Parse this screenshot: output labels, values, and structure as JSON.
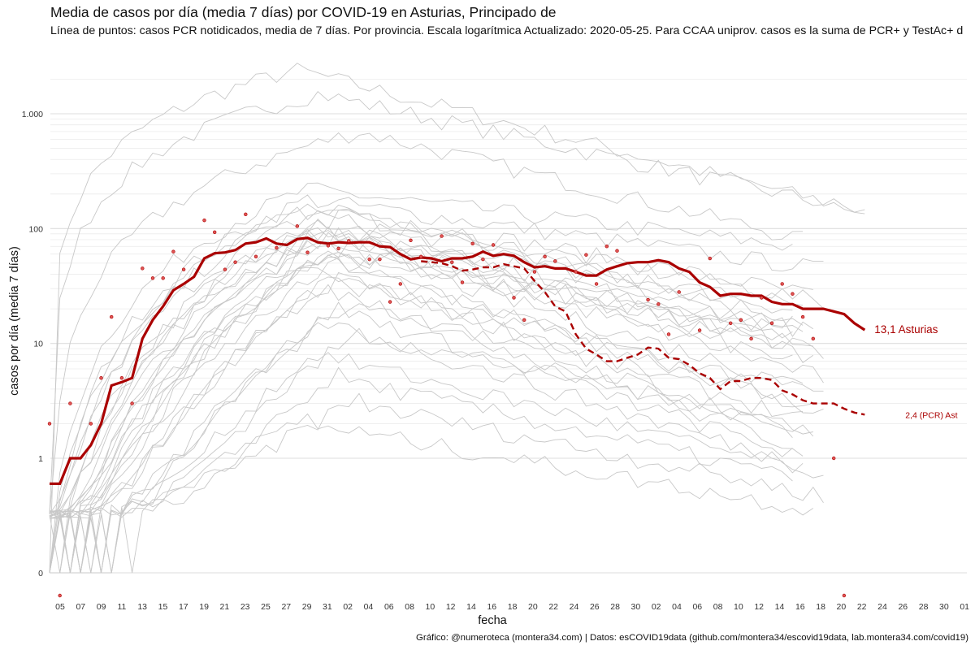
{
  "chart_data": {
    "type": "line",
    "title": "Media de casos por día (media 7 días) por COVID-19 en Asturias, Principado de",
    "subtitle": "Línea de puntos: casos PCR notidicados, media de 7 días. Por provincia. Escala logarítmica  Actualizado: 2020-05-25. Para CCAA uniprov. casos es la suma de PCR+ y TestAc+ d",
    "caption": "Gráfico: @numeroteca (montera34.com) | Datos: esCOVID19data (github.com/montera34/escovid19data, lab.montera34.com/covid19)",
    "xlabel": "fecha",
    "ylabel": "casos por día (media 7 días)",
    "y_scale": "log",
    "grid": true,
    "y_ticks": [
      {
        "value": 0,
        "label": "0"
      },
      {
        "value": 1,
        "label": "1"
      },
      {
        "value": 10,
        "label": "10"
      },
      {
        "value": 100,
        "label": "100"
      },
      {
        "value": 1000,
        "label": "1.000"
      }
    ],
    "x_tick_labels": [
      "05",
      "07",
      "09",
      "11",
      "13",
      "15",
      "17",
      "19",
      "21",
      "23",
      "25",
      "27",
      "29",
      "31",
      "02",
      "04",
      "06",
      "08",
      "10",
      "12",
      "14",
      "16",
      "18",
      "20",
      "22",
      "24",
      "26",
      "28",
      "30",
      "02",
      "04",
      "06",
      "08",
      "10",
      "12",
      "14",
      "16",
      "18",
      "20",
      "22",
      "24",
      "26",
      "28",
      "30",
      "01"
    ],
    "x_start_day": 4,
    "highlight_color": "#aa0000",
    "background_color": "#c8c8c8",
    "series": [
      {
        "name": "13,1 Asturias",
        "style": "solid",
        "values": [
          0.6,
          0.6,
          1,
          1,
          1.3,
          2,
          4.3,
          4.6,
          5,
          11,
          16,
          21,
          29,
          33,
          38,
          55,
          61,
          62,
          65,
          74,
          76,
          82,
          74,
          72,
          81,
          83,
          76,
          74,
          76,
          75,
          76,
          76,
          70,
          69,
          60,
          54,
          56,
          55,
          52,
          55,
          55,
          57,
          63,
          58,
          60,
          58,
          51,
          46,
          47,
          45,
          45,
          42,
          39,
          39,
          44,
          47,
          50,
          51,
          51,
          53,
          51,
          45,
          42,
          34,
          31,
          26,
          27,
          27,
          26,
          26,
          23,
          22,
          22,
          20,
          20,
          20,
          19,
          18,
          15,
          13.1
        ]
      },
      {
        "name": "2,4 (PCR) Ast",
        "style": "dashed",
        "values": [
          null,
          null,
          null,
          null,
          null,
          null,
          null,
          null,
          null,
          null,
          null,
          null,
          null,
          null,
          null,
          null,
          null,
          null,
          null,
          null,
          null,
          null,
          null,
          null,
          null,
          null,
          null,
          null,
          null,
          null,
          null,
          null,
          null,
          null,
          null,
          null,
          52,
          51,
          50,
          47,
          43,
          44,
          46,
          46,
          49,
          47,
          45,
          35,
          28,
          21,
          19,
          12,
          9,
          8,
          7,
          7,
          7.5,
          8,
          9.2,
          9,
          7.5,
          7.3,
          6.5,
          5.5,
          5,
          4,
          4.7,
          4.7,
          5,
          5,
          4.8,
          3.9,
          3.6,
          3.2,
          3,
          3,
          3,
          2.7,
          2.5,
          2.4
        ]
      }
    ],
    "daily_points": [
      {
        "x": "03-04",
        "y": 2
      },
      {
        "x": "03-06",
        "y": 3
      },
      {
        "x": "03-08",
        "y": 2
      },
      {
        "x": "03-09",
        "y": 5
      },
      {
        "x": "03-10",
        "y": 17
      },
      {
        "x": "03-11",
        "y": 5
      },
      {
        "x": "03-12",
        "y": 3
      },
      {
        "x": "03-13",
        "y": 45
      },
      {
        "x": "03-14",
        "y": 37
      },
      {
        "x": "03-15",
        "y": 37
      },
      {
        "x": "03-16",
        "y": 63
      },
      {
        "x": "03-17",
        "y": 44
      },
      {
        "x": "03-19",
        "y": 118
      },
      {
        "x": "03-20",
        "y": 93
      },
      {
        "x": "03-21",
        "y": 44
      },
      {
        "x": "03-22",
        "y": 51
      },
      {
        "x": "03-23",
        "y": 133
      },
      {
        "x": "03-24",
        "y": 57
      },
      {
        "x": "03-26",
        "y": 68
      },
      {
        "x": "03-28",
        "y": 105
      },
      {
        "x": "03-29",
        "y": 62
      },
      {
        "x": "03-31",
        "y": 71
      },
      {
        "x": "04-01",
        "y": 67
      },
      {
        "x": "04-02",
        "y": 78
      },
      {
        "x": "04-04",
        "y": 54
      },
      {
        "x": "04-05",
        "y": 54
      },
      {
        "x": "04-06",
        "y": 23
      },
      {
        "x": "04-07",
        "y": 33
      },
      {
        "x": "04-08",
        "y": 79
      },
      {
        "x": "04-09",
        "y": 57
      },
      {
        "x": "04-11",
        "y": 86
      },
      {
        "x": "04-12",
        "y": 51
      },
      {
        "x": "04-13",
        "y": 34
      },
      {
        "x": "04-14",
        "y": 74
      },
      {
        "x": "04-15",
        "y": 54
      },
      {
        "x": "04-16",
        "y": 72
      },
      {
        "x": "04-18",
        "y": 25
      },
      {
        "x": "04-19",
        "y": 16
      },
      {
        "x": "04-20",
        "y": 42
      },
      {
        "x": "04-21",
        "y": 57
      },
      {
        "x": "04-22",
        "y": 52
      },
      {
        "x": "04-24",
        "y": 42
      },
      {
        "x": "04-25",
        "y": 59
      },
      {
        "x": "04-26",
        "y": 33
      },
      {
        "x": "04-27",
        "y": 70
      },
      {
        "x": "04-28",
        "y": 64
      },
      {
        "x": "05-01",
        "y": 24
      },
      {
        "x": "05-02",
        "y": 22
      },
      {
        "x": "05-03",
        "y": 12
      },
      {
        "x": "05-04",
        "y": 28
      },
      {
        "x": "05-06",
        "y": 13
      },
      {
        "x": "05-07",
        "y": 55
      },
      {
        "x": "05-09",
        "y": 15
      },
      {
        "x": "05-10",
        "y": 16
      },
      {
        "x": "05-11",
        "y": 11
      },
      {
        "x": "05-12",
        "y": 25
      },
      {
        "x": "05-13",
        "y": 15
      },
      {
        "x": "05-14",
        "y": 33
      },
      {
        "x": "05-15",
        "y": 27
      },
      {
        "x": "05-16",
        "y": 17
      },
      {
        "x": "05-17",
        "y": 11
      },
      {
        "x": "05-19",
        "y": 1
      },
      {
        "x": "03-05",
        "y": 0
      },
      {
        "x": "05-20",
        "y": 0
      }
    ],
    "background_series_note": "Otras provincias en gris"
  }
}
